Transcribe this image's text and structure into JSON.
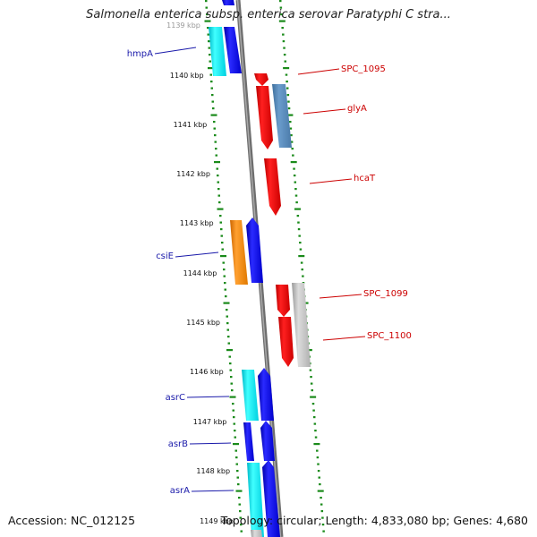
{
  "title": "Salmonella enterica subsp. enterica serovar Paratyphi C stra...",
  "accession": "Accession: NC_012125",
  "footer_info": "Topology: circular; Length: 4,833,080 bp; Genes: 4,680",
  "colors": {
    "backbone": "#808080",
    "ticks": "#1a8a1a",
    "left_labels": "#1a1aaa",
    "right_labels": "#cc0000"
  },
  "ticks": [
    {
      "label": "1139 kbp"
    },
    {
      "label": "1140 kbp"
    },
    {
      "label": "1141 kbp"
    },
    {
      "label": "1142 kbp"
    },
    {
      "label": "1143 kbp"
    },
    {
      "label": "1144 kbp"
    },
    {
      "label": "1145 kbp"
    },
    {
      "label": "1146 kbp"
    },
    {
      "label": "1147 kbp"
    },
    {
      "label": "1148 kbp"
    },
    {
      "label": "1149 kbp"
    }
  ],
  "left_labels": [
    {
      "name": "hmpA"
    },
    {
      "name": "csiE"
    },
    {
      "name": "asrC"
    },
    {
      "name": "asrB"
    },
    {
      "name": "asrA"
    }
  ],
  "right_labels": [
    {
      "name": "SPC_1095"
    },
    {
      "name": "glyA"
    },
    {
      "name": "hcaT"
    },
    {
      "name": "SPC_1099"
    },
    {
      "name": "SPC_1100"
    }
  ]
}
